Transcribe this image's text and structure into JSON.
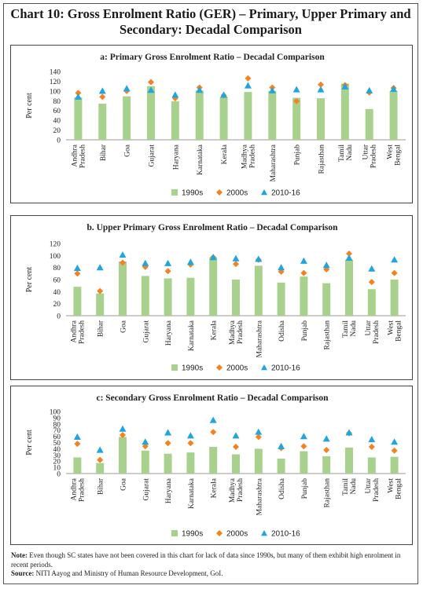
{
  "figure": {
    "title_line1": "Chart 10: Gross Enrolment Ratio (GER) – Primary, Upper Primary and",
    "title_line2": "Secondary: Decadal Comparison",
    "note_label": "Note:",
    "note_text": "Even though SC states have not been covered in this chart for lack of data since 1990s, but many of them exhibit high enrolment in recent periods.",
    "source_label": "Source:",
    "source_text": "NITI Aayog and Ministry of Human Resource Development, GoI."
  },
  "colors": {
    "bar_1990s": "#a9d18e",
    "diamond_2000s": "#f58220",
    "triangle_2010_16": "#1fa6e0"
  },
  "chart_data": [
    {
      "type": "bar",
      "title": "a: Primary Gross Enrolment Ratio – Decadal Comparison",
      "ylabel": "Per cent",
      "ylim": [
        0,
        140
      ],
      "yticks": [
        "0",
        "20",
        "40",
        "60",
        "80",
        "100",
        "120",
        "140"
      ],
      "categories": [
        "Andhra Pradesh",
        "Bihar",
        "Goa",
        "Gujarat",
        "Haryana",
        "Karnataka",
        "Kerala",
        "Madhya Pradesh",
        "Maharashtra",
        "Punjab",
        "Rajasthan",
        "Tamil Nadu",
        "Uttar Pradesh",
        "West Bengal"
      ],
      "series": [
        {
          "name": "1990s",
          "marker": "bar",
          "values": [
            87,
            74,
            89,
            110,
            79,
            101,
            88,
            98,
            100,
            86,
            85,
            115,
            63,
            100
          ]
        },
        {
          "name": "2000s",
          "marker": "diamond",
          "values": [
            96,
            88,
            100,
            118,
            85,
            107,
            91,
            126,
            107,
            79,
            113,
            112,
            97,
            106
          ]
        },
        {
          "name": "2010-16",
          "marker": "triangle",
          "values": [
            88,
            100,
            105,
            102,
            92,
            102,
            92,
            111,
            101,
            103,
            103,
            109,
            101,
            104
          ]
        }
      ],
      "legend": "bottom"
    },
    {
      "type": "bar",
      "title": "b. Upper Primary Gross Enrolment Ratio – Decadal Comparison",
      "ylabel": "Per cent",
      "ylim": [
        0,
        120
      ],
      "yticks": [
        "0",
        "20",
        "40",
        "60",
        "80",
        "100",
        "120"
      ],
      "categories": [
        "Andhra Pradesh",
        "Bihar",
        "Goa",
        "Gujarat",
        "Haryana",
        "Karnataka",
        "Kerala",
        "Madhya Pradesh",
        "Maharashtra",
        "Odisha",
        "Punjab",
        "Rajasthan",
        "Tamil Nadu",
        "Uttar Pradesh",
        "West Bengal"
      ],
      "series": [
        {
          "name": "1990s",
          "marker": "bar",
          "values": [
            48,
            37,
            90,
            66,
            62,
            63,
            97,
            60,
            83,
            55,
            65,
            54,
            93,
            44,
            60
          ]
        },
        {
          "name": "2000s",
          "marker": "diamond",
          "values": [
            70,
            41,
            88,
            81,
            74,
            85,
            97,
            86,
            93,
            73,
            71,
            77,
            103,
            56,
            71
          ]
        },
        {
          "name": "2010-16",
          "marker": "triangle",
          "values": [
            79,
            80,
            101,
            87,
            87,
            89,
            97,
            95,
            94,
            80,
            91,
            84,
            96,
            78,
            93
          ]
        }
      ],
      "legend": "bottom"
    },
    {
      "type": "bar",
      "title": "c: Secondary Gross Enrolment Ratio – Decadal Comparison",
      "ylabel": "Per cent",
      "ylim": [
        0,
        100
      ],
      "yticks": [
        "0",
        "10",
        "20",
        "30",
        "40",
        "50",
        "60",
        "70",
        "80",
        "90",
        "100"
      ],
      "categories": [
        "Andhra Pradesh",
        "Bihar",
        "Goa",
        "Gujarat",
        "Haryana",
        "Karnataka",
        "Kerala",
        "Madhya Pradesh",
        "Maharashtra",
        "Odisha",
        "Punjab",
        "Rajasthan",
        "Tamil Nadu",
        "Uttar Pradesh",
        "West Bengal"
      ],
      "series": [
        {
          "name": "1990s",
          "marker": "bar",
          "values": [
            26,
            17,
            59,
            37,
            32,
            34,
            43,
            31,
            40,
            24,
            36,
            28,
            42,
            26,
            27
          ]
        },
        {
          "name": "2000s",
          "marker": "diamond",
          "values": [
            48,
            22,
            62,
            44,
            49,
            49,
            67,
            43,
            59,
            41,
            44,
            38,
            65,
            43,
            37
          ]
        },
        {
          "name": "2010-16",
          "marker": "triangle",
          "values": [
            59,
            38,
            72,
            51,
            66,
            61,
            86,
            61,
            67,
            44,
            60,
            56,
            66,
            55,
            51
          ]
        }
      ],
      "legend": "bottom"
    }
  ]
}
